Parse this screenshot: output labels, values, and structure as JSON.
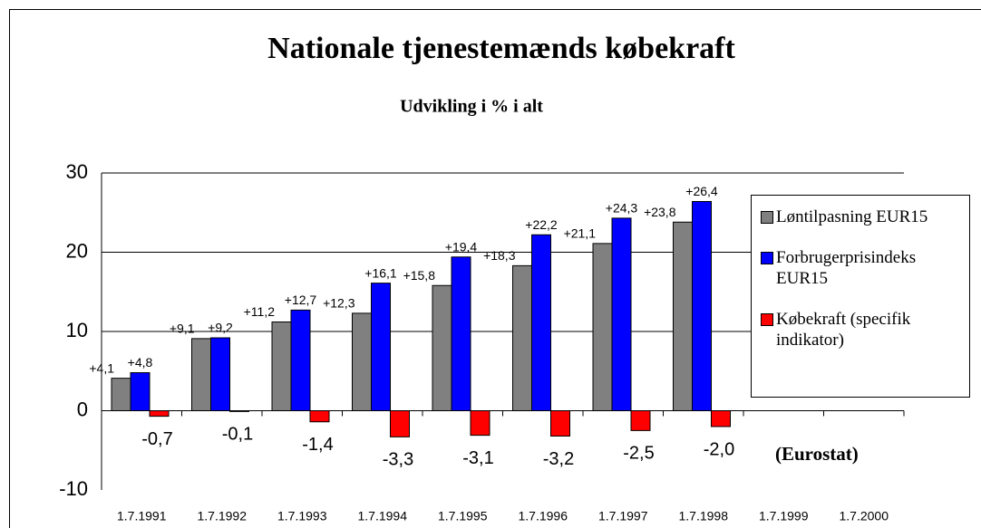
{
  "chart_data": {
    "type": "bar",
    "title": "Nationale tjenestemænds købekraft",
    "subtitle": "Udvikling i % i alt",
    "annotation": "(Eurostat)",
    "categories": [
      "1.7.1991",
      "1.7.1992",
      "1.7.1993",
      "1.7.1994",
      "1.7.1995",
      "1.7.1996",
      "1.7.1997",
      "1.7.1998",
      "1.7.1999",
      "1.7.2000"
    ],
    "series": [
      {
        "name": "Løntilpasning EUR15",
        "color": "#808080",
        "values": [
          4.1,
          9.1,
          11.2,
          12.3,
          15.8,
          18.3,
          21.1,
          23.8,
          null,
          null
        ],
        "value_labels": [
          "+4,1",
          "+9,1",
          "+11,2",
          "+12,3",
          "+15,8",
          "+18,3",
          "+21,1",
          "+23,8",
          null,
          null
        ]
      },
      {
        "name": "Forbrugerprisindeks EUR15",
        "color": "#0000ff",
        "values": [
          4.8,
          9.2,
          12.7,
          16.1,
          19.4,
          22.2,
          24.3,
          26.4,
          null,
          null
        ],
        "value_labels": [
          "+4,8",
          "+9,2",
          "+12,7",
          "+16,1",
          "+19,4",
          "+22,2",
          "+24,3",
          "+26,4",
          null,
          null
        ]
      },
      {
        "name": "Købekraft (specifik indikator)",
        "color": "#ff0000",
        "values": [
          -0.7,
          -0.1,
          -1.4,
          -3.3,
          -3.1,
          -3.2,
          -2.5,
          -2.0,
          null,
          null
        ],
        "value_labels": [
          "-0,7",
          "-0,1",
          "-1,4",
          "-3,3",
          "-3,1",
          "-3,2",
          "-2,5",
          "-2,0",
          null,
          null
        ]
      }
    ],
    "ylim": [
      -10,
      30
    ],
    "yticks": [
      -10,
      0,
      10,
      20,
      30
    ],
    "grid": true
  }
}
